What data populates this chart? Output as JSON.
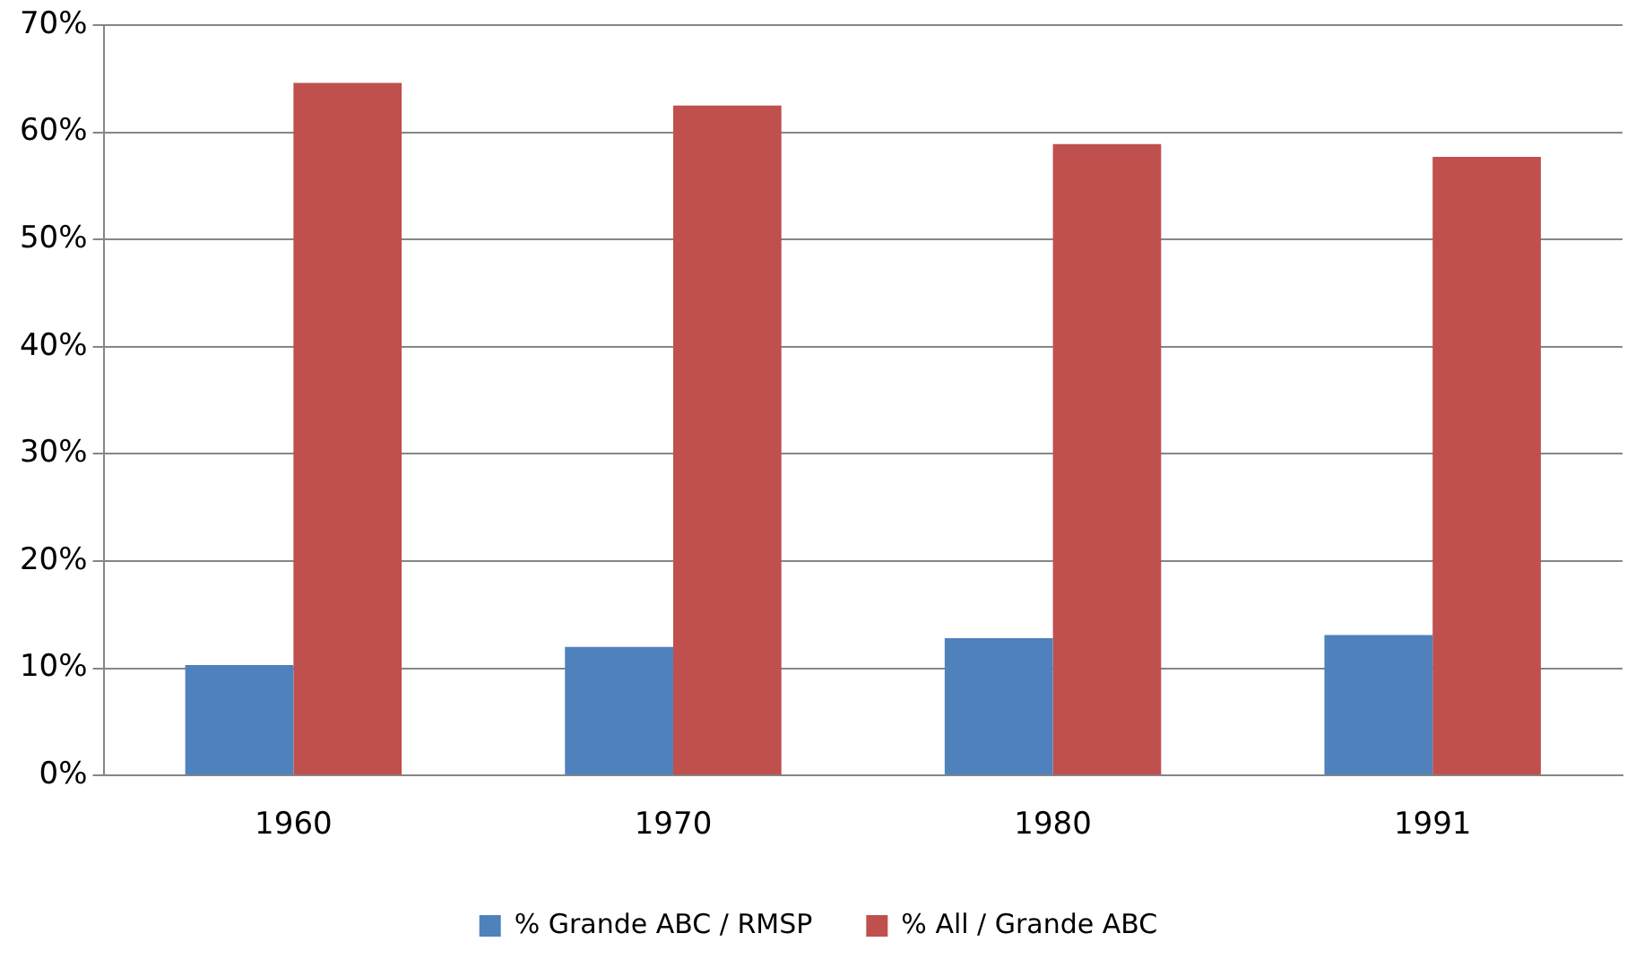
{
  "chart_data": {
    "type": "bar",
    "categories": [
      "1960",
      "1970",
      "1980",
      "1991"
    ],
    "series": [
      {
        "name": "% Grande ABC / RMSP",
        "color": "#4f81bd",
        "values": [
          10.3,
          12.0,
          12.8,
          13.1
        ]
      },
      {
        "name": "% All / Grande ABC",
        "color": "#c0504d",
        "values": [
          64.6,
          62.5,
          58.9,
          57.7
        ]
      }
    ],
    "ylim": [
      0,
      70
    ],
    "yticks": [
      {
        "value": 0,
        "label": "0%"
      },
      {
        "value": 10,
        "label": "10%"
      },
      {
        "value": 20,
        "label": "20%"
      },
      {
        "value": 30,
        "label": "30%"
      },
      {
        "value": 40,
        "label": "40%"
      },
      {
        "value": 50,
        "label": "50%"
      },
      {
        "value": 60,
        "label": "60%"
      },
      {
        "value": 70,
        "label": "70%"
      }
    ],
    "grid": "y",
    "legend": "bottom"
  }
}
